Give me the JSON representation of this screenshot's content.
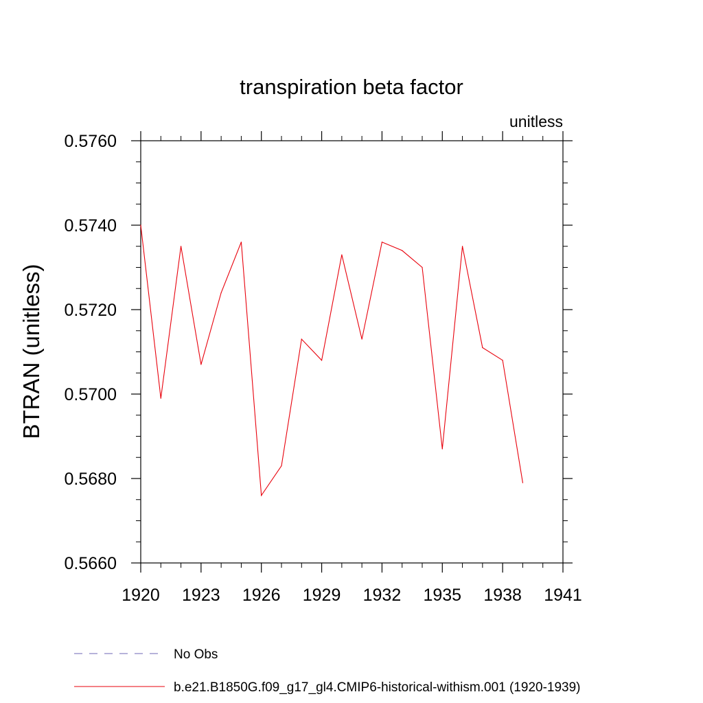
{
  "chart_data": {
    "type": "line",
    "title": "transpiration beta factor",
    "subtitle": "unitless",
    "xlabel": "",
    "ylabel": "BTRAN  (unitless)",
    "xlim": [
      1920,
      1941
    ],
    "ylim": [
      0.566,
      0.576
    ],
    "x_ticks": [
      "1920",
      "1923",
      "1926",
      "1929",
      "1932",
      "1935",
      "1938",
      "1941"
    ],
    "y_ticks": [
      "0.5660",
      "0.5680",
      "0.5700",
      "0.5720",
      "0.5740",
      "0.5760"
    ],
    "grid": false,
    "legend_position": "bottom",
    "series": [
      {
        "name": "No Obs",
        "color": "#6e64b4",
        "style": "dashed",
        "x": [],
        "values": []
      },
      {
        "name": "b.e21.B1850G.f09_g17_gl4.CMIP6-historical-withism.001 (1920-1939)",
        "color": "#e8000b",
        "style": "solid",
        "x": [
          1920,
          1921,
          1922,
          1923,
          1924,
          1925,
          1926,
          1927,
          1928,
          1929,
          1930,
          1931,
          1932,
          1933,
          1934,
          1935,
          1936,
          1937,
          1938,
          1939
        ],
        "values": [
          0.574,
          0.5699,
          0.5735,
          0.5707,
          0.5724,
          0.5736,
          0.5676,
          0.5683,
          0.5713,
          0.5708,
          0.5733,
          0.5713,
          0.5736,
          0.5734,
          0.573,
          0.5687,
          0.5735,
          0.5711,
          0.5708,
          0.5679
        ]
      }
    ]
  }
}
